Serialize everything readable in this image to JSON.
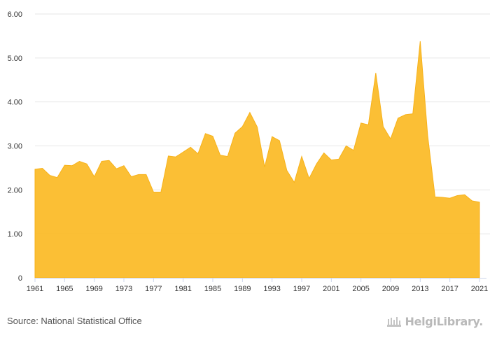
{
  "chart_data": {
    "type": "area",
    "title": "",
    "xlabel": "",
    "ylabel": "",
    "ylim": [
      0,
      6
    ],
    "xlim": [
      1961,
      2021
    ],
    "grid": true,
    "legend": "none",
    "color": "#fbbc2a",
    "y_ticks": [
      "0",
      "1.00",
      "2.00",
      "3.00",
      "4.00",
      "5.00",
      "6.00"
    ],
    "x_ticks": [
      "1961",
      "1965",
      "1969",
      "1973",
      "1977",
      "1981",
      "1985",
      "1989",
      "1993",
      "1997",
      "2001",
      "2005",
      "2009",
      "2013",
      "2017",
      "2021"
    ],
    "x": [
      1961,
      1962,
      1963,
      1964,
      1965,
      1966,
      1967,
      1968,
      1969,
      1970,
      1971,
      1972,
      1973,
      1974,
      1975,
      1976,
      1977,
      1978,
      1979,
      1980,
      1981,
      1982,
      1983,
      1984,
      1985,
      1986,
      1987,
      1988,
      1989,
      1990,
      1991,
      1992,
      1993,
      1994,
      1995,
      1996,
      1997,
      1998,
      1999,
      2000,
      2001,
      2002,
      2003,
      2004,
      2005,
      2006,
      2007,
      2008,
      2009,
      2010,
      2011,
      2012,
      2013,
      2014,
      2015,
      2016,
      2017,
      2018,
      2019,
      2020,
      2021
    ],
    "values": [
      2.47,
      2.49,
      2.33,
      2.28,
      2.56,
      2.55,
      2.65,
      2.59,
      2.3,
      2.65,
      2.67,
      2.48,
      2.55,
      2.3,
      2.35,
      2.35,
      1.95,
      1.95,
      2.77,
      2.75,
      2.86,
      2.97,
      2.82,
      3.28,
      3.22,
      2.79,
      2.76,
      3.29,
      3.44,
      3.76,
      3.43,
      2.52,
      3.21,
      3.12,
      2.44,
      2.17,
      2.76,
      2.26,
      2.59,
      2.84,
      2.68,
      2.7,
      3.0,
      2.9,
      3.52,
      3.48,
      4.66,
      3.44,
      3.16,
      3.63,
      3.71,
      3.73,
      5.38,
      3.24,
      1.84,
      1.83,
      1.81,
      1.87,
      1.89,
      1.75,
      1.72
    ]
  },
  "footer": {
    "source": "Source: National Statistical Office",
    "brand": "HelgiLibrary."
  },
  "icons": {
    "brand": "helgilibrary-logo-icon"
  }
}
